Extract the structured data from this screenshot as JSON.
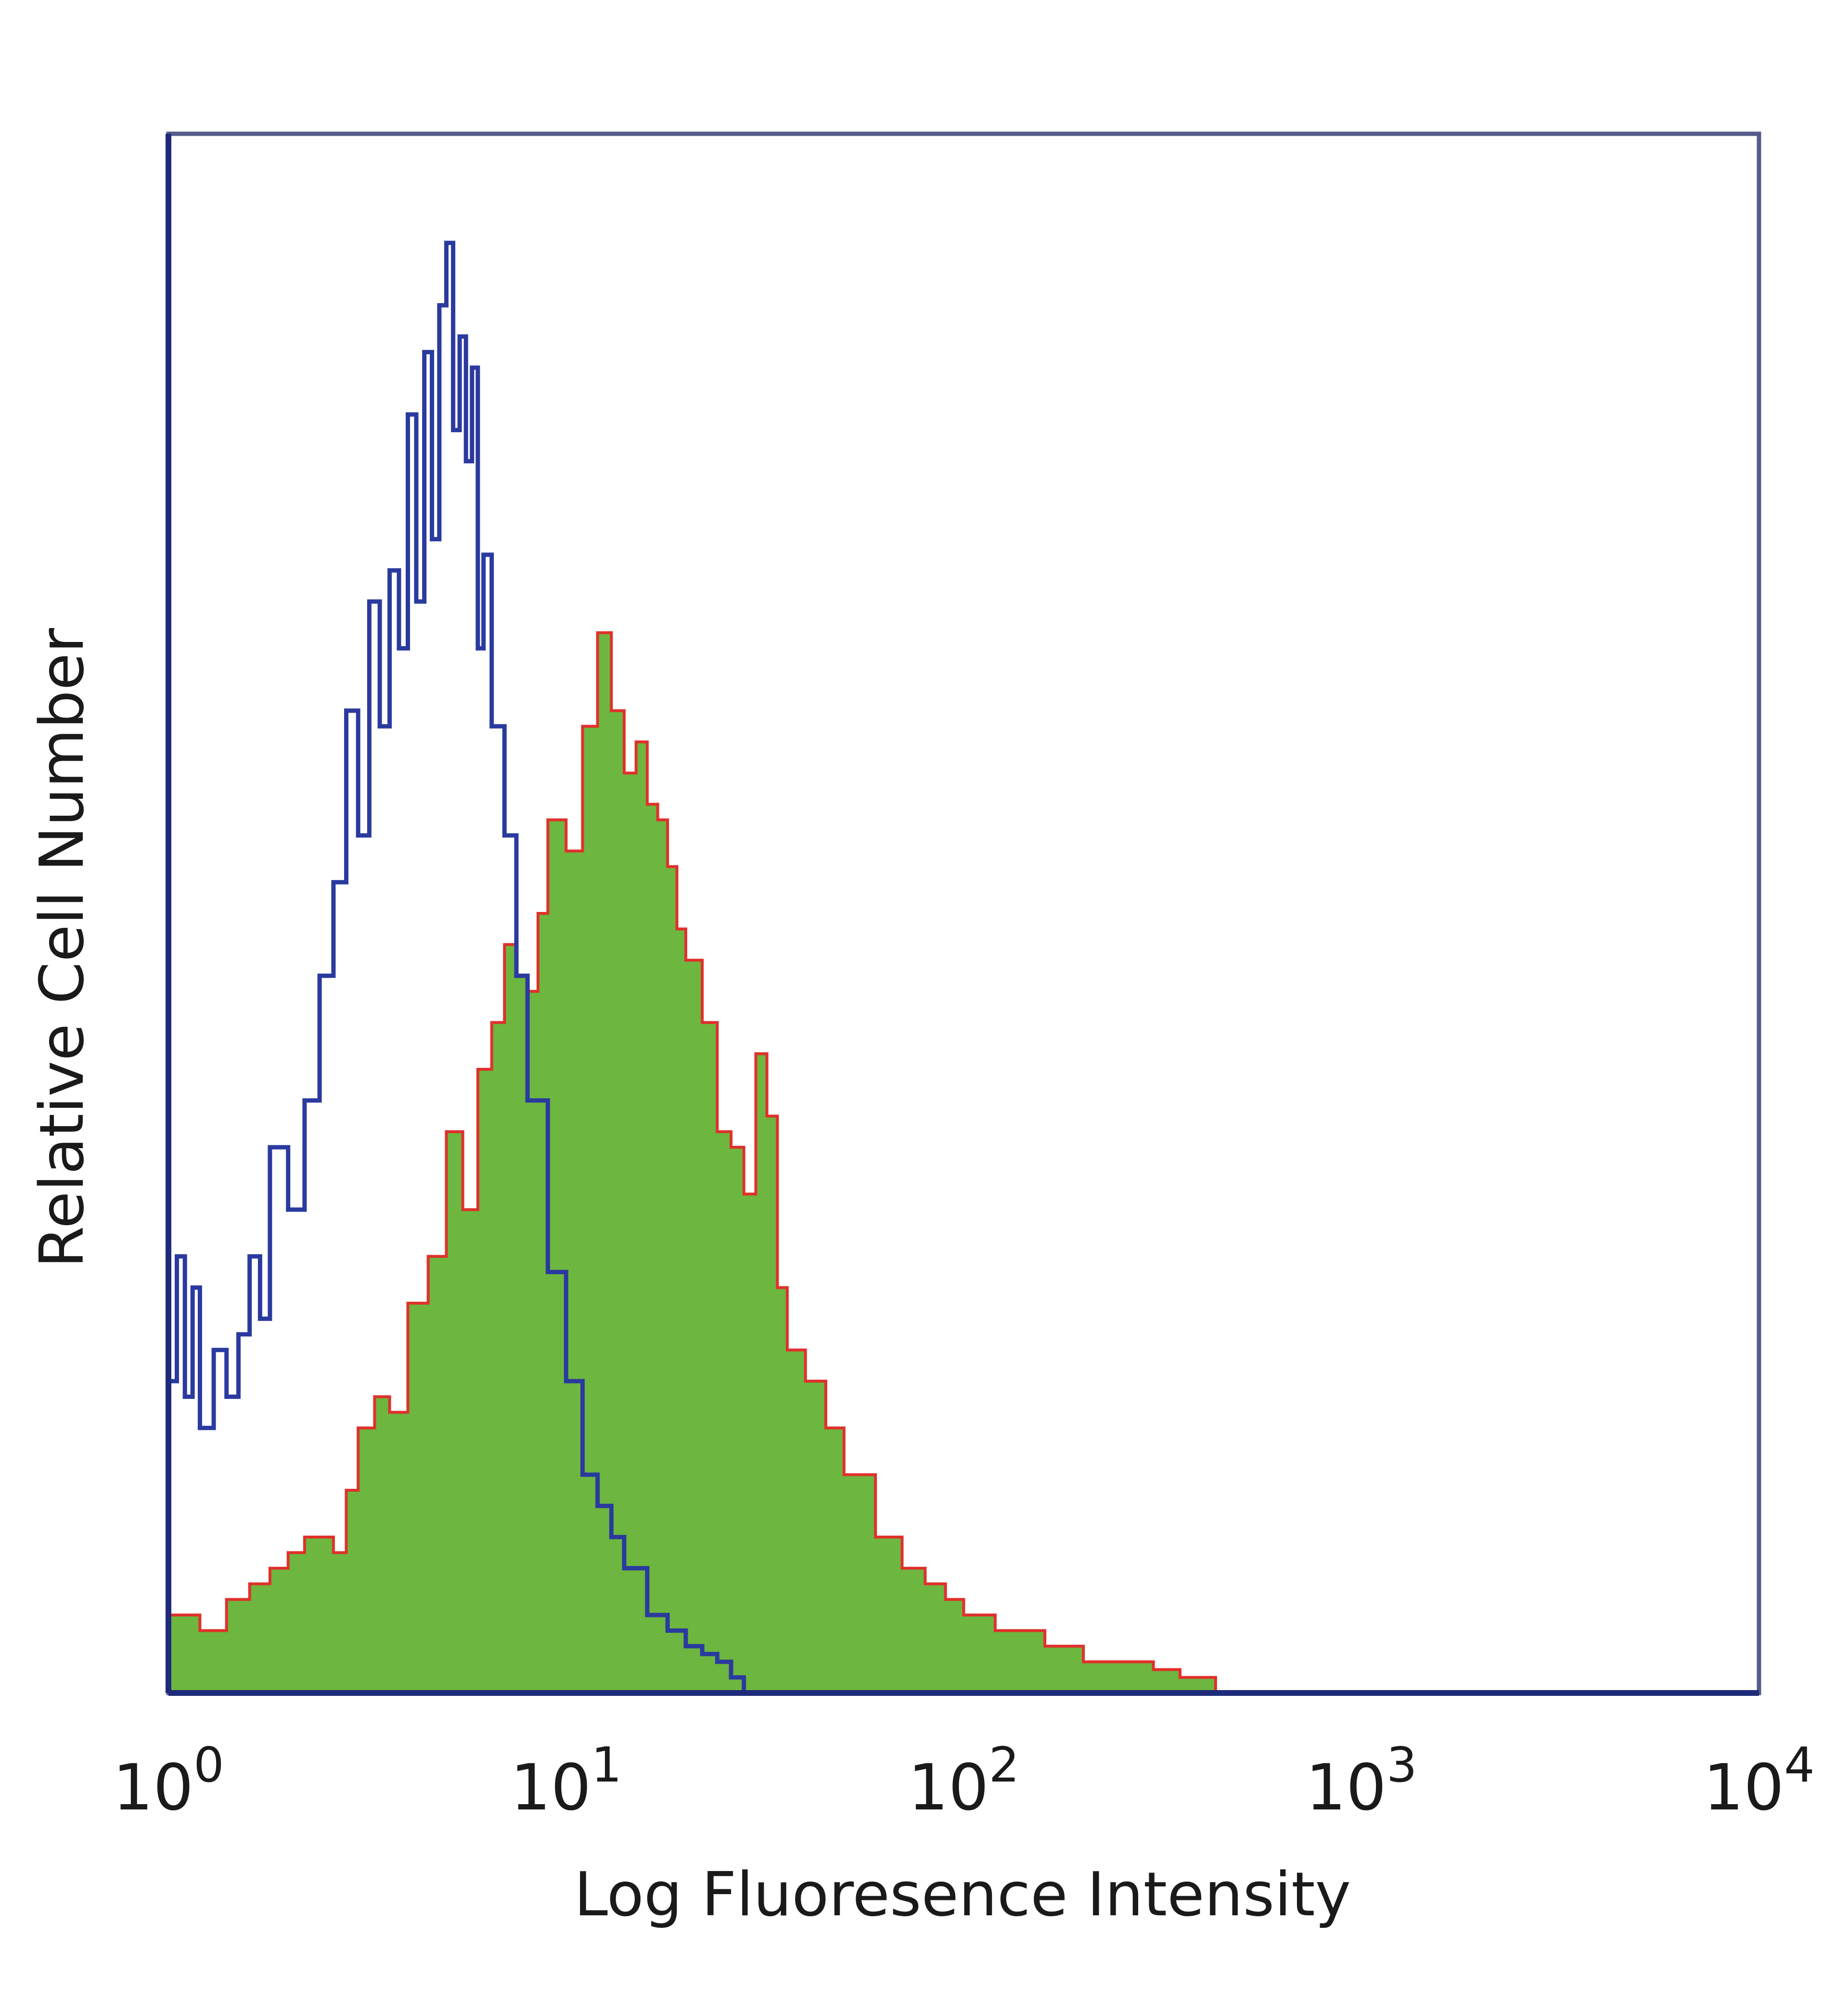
{
  "chart_data": {
    "type": "area",
    "title": "",
    "xlabel": "Log Fluoresence Intensity",
    "ylabel": "Relative Cell Number",
    "xscale": "log",
    "xlim": [
      1,
      10000
    ],
    "ylim": [
      0,
      100
    ],
    "grid": false,
    "legend": "none",
    "x_ticks": [
      {
        "base": "10",
        "exp": "0",
        "value": 1
      },
      {
        "base": "10",
        "exp": "1",
        "value": 10
      },
      {
        "base": "10",
        "exp": "2",
        "value": 100
      },
      {
        "base": "10",
        "exp": "3",
        "value": 1000
      },
      {
        "base": "10",
        "exp": "4",
        "value": 10000
      }
    ],
    "series": [
      {
        "style": "outline",
        "color": "#2a3a9e",
        "x": [
          1,
          1.05,
          1.1,
          1.15,
          1.2,
          1.3,
          1.4,
          1.5,
          1.6,
          1.7,
          1.8,
          2.0,
          2.2,
          2.4,
          2.6,
          2.8,
          3.0,
          3.2,
          3.4,
          3.6,
          3.8,
          4.0,
          4.2,
          4.4,
          4.6,
          4.8,
          5.0,
          5.2,
          5.4,
          5.6,
          5.8,
          6.0,
          6.2,
          6.5,
          7.0,
          7.5,
          8.0,
          9.0,
          10,
          11,
          12,
          13,
          14,
          16,
          18,
          20,
          22,
          24,
          26,
          28
        ],
        "values": [
          20,
          28,
          19,
          26,
          17,
          22,
          19,
          23,
          28,
          24,
          35,
          31,
          38,
          46,
          52,
          63,
          55,
          70,
          62,
          72,
          67,
          82,
          70,
          86,
          74,
          89,
          93,
          81,
          87,
          79,
          85,
          67,
          73,
          62,
          55,
          46,
          38,
          27,
          20,
          14,
          12,
          10,
          8,
          5,
          4,
          3,
          2.5,
          2,
          1,
          0
        ]
      },
      {
        "style": "filled",
        "color": "#6db63f",
        "edge_color": "#e0312b",
        "x": [
          1,
          1.2,
          1.4,
          1.6,
          1.8,
          2.0,
          2.2,
          2.4,
          2.6,
          2.8,
          3.0,
          3.3,
          3.6,
          4.0,
          4.5,
          5.0,
          5.5,
          6.0,
          6.5,
          7.0,
          7.5,
          8.0,
          8.5,
          9.0,
          10,
          11,
          12,
          13,
          14,
          15,
          16,
          17,
          18,
          19,
          20,
          22,
          24,
          26,
          28,
          30,
          32,
          34,
          36,
          40,
          45,
          50,
          60,
          70,
          80,
          90,
          100,
          120,
          140,
          160,
          180,
          200,
          250,
          300,
          350,
          400,
          430
        ],
        "values": [
          5,
          4,
          6,
          7,
          8,
          9,
          10,
          10,
          9,
          13,
          17,
          19,
          18,
          25,
          28,
          36,
          31,
          40,
          43,
          48,
          46,
          45,
          50,
          56,
          54,
          62,
          68,
          63,
          59,
          61,
          57,
          56,
          53,
          49,
          47,
          43,
          36,
          35,
          32,
          41,
          37,
          26,
          22,
          20,
          17,
          14,
          10,
          8,
          7,
          6,
          5,
          4,
          4,
          3,
          3,
          2,
          2,
          1.5,
          1,
          1,
          0
        ]
      }
    ]
  }
}
